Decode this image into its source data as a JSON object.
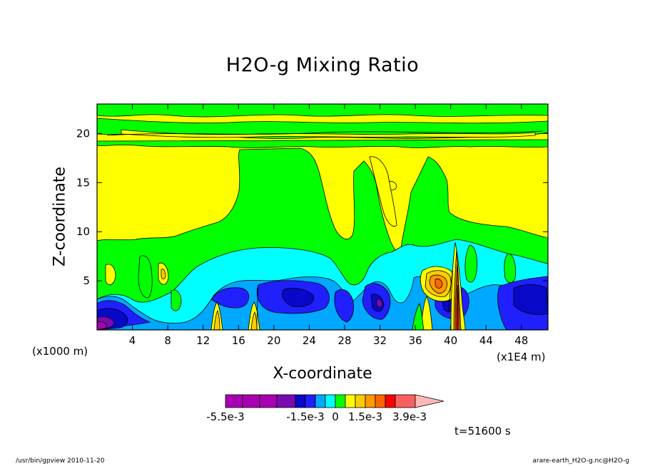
{
  "chart_data": {
    "type": "heatmap",
    "title": "H2O-g Mixing Ratio",
    "xlabel": "X-coordinate",
    "ylabel": "Z-coordinate",
    "x_unit": "(x1000 m)",
    "x_scale": "(x1E4 m)",
    "xlim": [
      0,
      51
    ],
    "ylim": [
      0,
      23
    ],
    "x_ticks": [
      4,
      8,
      12,
      16,
      20,
      24,
      28,
      32,
      36,
      40,
      44,
      48
    ],
    "y_ticks": [
      5,
      10,
      15,
      20
    ],
    "colorbar": {
      "colors": [
        "#a800b0",
        "#a800b0",
        "#a800b0",
        "#7a0ab0",
        "#0808c8",
        "#2020ff",
        "#00a8ff",
        "#00ffff",
        "#00ff00",
        "#ffff00",
        "#ffcc00",
        "#ff9900",
        "#ff6600",
        "#ff0000",
        "#f86060",
        "#ffb8b8"
      ],
      "tick_labels": [
        "-5.5e-3",
        "-1.5e-3",
        "0",
        "1.5e-3",
        "3.9e-3"
      ]
    },
    "timestamp": "t=51600 s"
  },
  "footer": {
    "left": "/usr/bin/gpview  2010-11-20",
    "right": "arare-earth_H2O-g.nc@H2O-g"
  }
}
